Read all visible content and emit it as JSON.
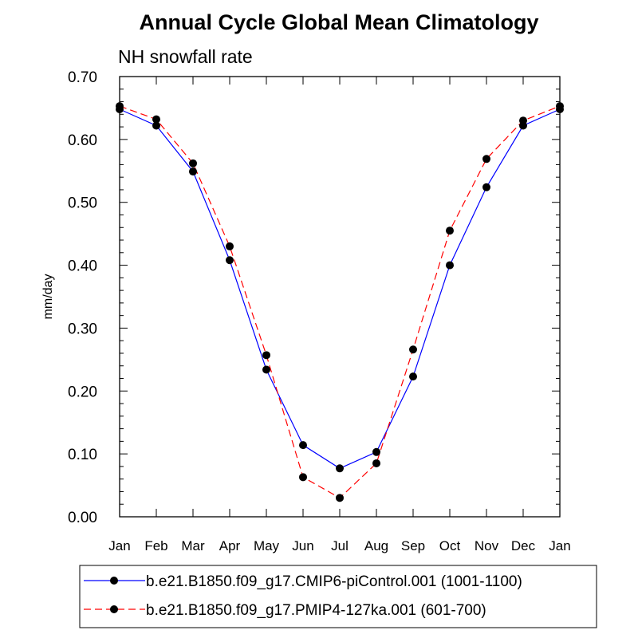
{
  "chart_data": {
    "type": "line",
    "title": "Annual Cycle Global Mean Climatology",
    "subtitle": "NH snowfall rate",
    "ylabel": "mm/day",
    "xlabel": "",
    "categories": [
      "Jan",
      "Feb",
      "Mar",
      "Apr",
      "May",
      "Jun",
      "Jul",
      "Aug",
      "Sep",
      "Oct",
      "Nov",
      "Dec",
      "Jan"
    ],
    "ylim": [
      0,
      0.7
    ],
    "yticks": [
      "0.00",
      "0.10",
      "0.20",
      "0.30",
      "0.40",
      "0.50",
      "0.60",
      "0.70"
    ],
    "grid": false,
    "legend_position": "bottom",
    "series": [
      {
        "name": "b.e21.B1850.f09_g17.CMIP6-piControl.001 (1001-1100)",
        "color": "#0000ff",
        "line_style": "solid",
        "values": [
          0.648,
          0.622,
          0.549,
          0.408,
          0.234,
          0.114,
          0.077,
          0.103,
          0.223,
          0.4,
          0.524,
          0.622,
          0.648
        ]
      },
      {
        "name": "b.e21.B1850.f09_g17.PMIP4-127ka.001 (601-700)",
        "color": "#ff0000",
        "line_style": "dashed",
        "values": [
          0.653,
          0.632,
          0.562,
          0.43,
          0.257,
          0.063,
          0.03,
          0.085,
          0.266,
          0.455,
          0.569,
          0.63,
          0.653
        ]
      }
    ]
  }
}
